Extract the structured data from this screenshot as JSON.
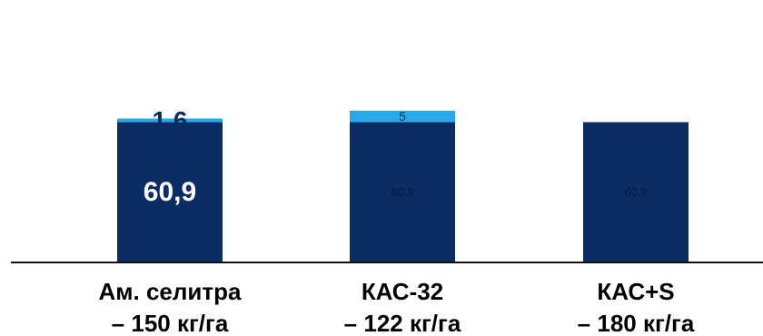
{
  "chart_data": {
    "type": "bar",
    "stacked": true,
    "categories": [
      "Ам. селитра – 150 кг/га",
      "КАС-32 – 122 кг/га",
      "КАС+S – 180 кг/га"
    ],
    "category_lines": [
      [
        "Ам. селитра",
        "– 150 кг/га"
      ],
      [
        "КАС-32",
        "– 122 кг/га"
      ],
      [
        "КАС+S",
        "– 180 кг/га"
      ]
    ],
    "series": [
      {
        "values": [
          60.9,
          60.9,
          60.9
        ],
        "labels": [
          "60,9",
          "60,9",
          "60,9"
        ],
        "color": "#0b2d64"
      },
      {
        "values": [
          1.6,
          5,
          null
        ],
        "labels": [
          "1,6",
          "5",
          ""
        ],
        "color": "#2aa9e8"
      }
    ],
    "label_colors": [
      "#ffffff",
      "#0b2d64"
    ],
    "title": "",
    "xlabel": "",
    "ylabel": "",
    "legend": "none",
    "grid": false
  }
}
